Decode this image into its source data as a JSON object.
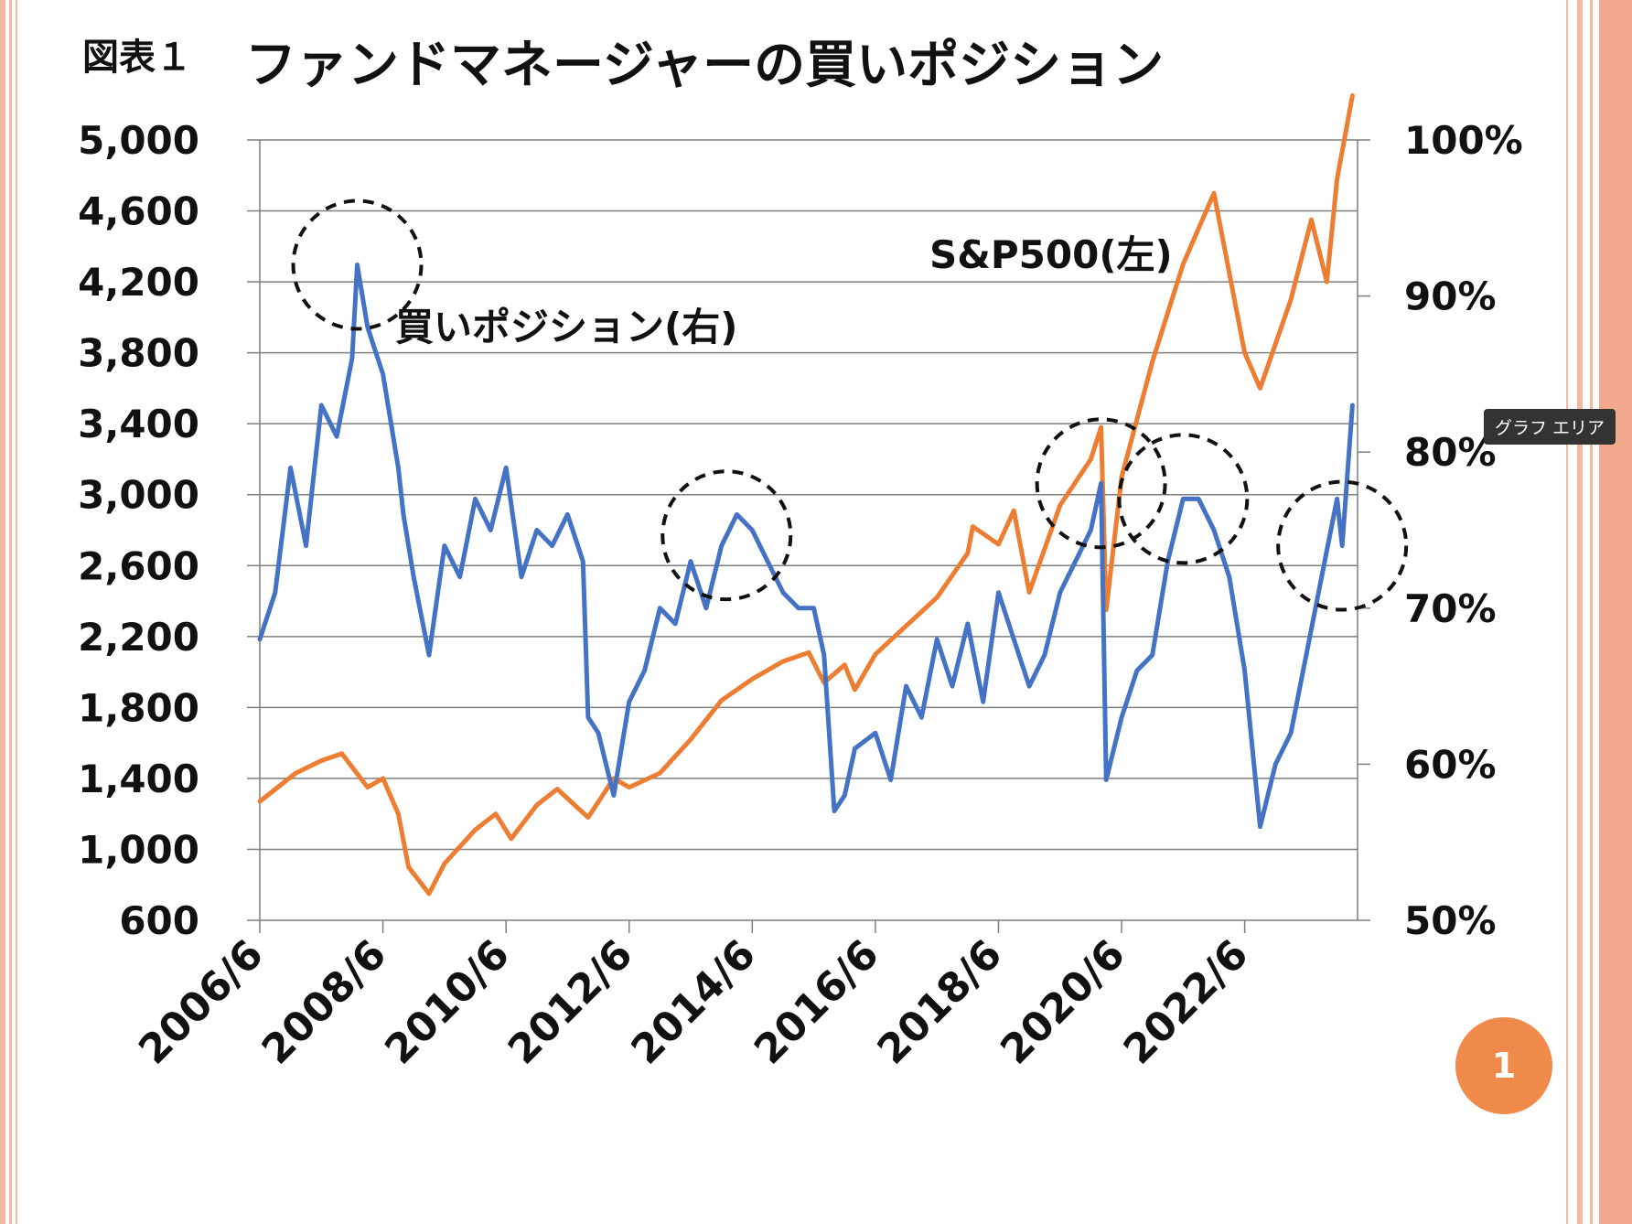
{
  "header": {
    "figure_label": "図表１",
    "title": "ファンドマネージャーの買いポジション"
  },
  "tooltip": "グラフ エリア",
  "page_number": "1",
  "colors": {
    "sp500": "#ed7d31",
    "buy_position": "#4472c4",
    "grid": "#7f7f7f",
    "accent_frame": "#f4b9a2",
    "badge": "#f08a4b"
  },
  "chart_data": {
    "type": "line",
    "title": "ファンドマネージャーの買いポジション",
    "x_ticks": [
      "2006/6",
      "2008/6",
      "2010/6",
      "2012/6",
      "2014/6",
      "2016/6",
      "2018/6",
      "2020/6",
      "2022/6"
    ],
    "y_left": {
      "ylim": [
        600,
        5000
      ],
      "ticks": [
        "5,000",
        "4,600",
        "4,200",
        "3,800",
        "3,400",
        "3,000",
        "2,600",
        "2,200",
        "1,800",
        "1,400",
        "1,000",
        "600"
      ]
    },
    "y_right": {
      "ylim": [
        50,
        100
      ],
      "ticks": [
        "100%",
        "90%",
        "80%",
        "70%",
        "60%",
        "50%"
      ]
    },
    "annotations": {
      "sp500_label": "S&P500(左)",
      "buy_label": "買いポジション(右)"
    },
    "highlighted_periods": [
      "2008/1",
      "2014/1",
      "2020/2",
      "2021/6",
      "2024/1"
    ],
    "series": [
      {
        "name": "S&P500(左)",
        "axis": "left",
        "x": [
          "2006/6",
          "2007/1",
          "2007/6",
          "2007/10",
          "2008/3",
          "2008/6",
          "2008/9",
          "2008/11",
          "2009/3",
          "2009/6",
          "2009/12",
          "2010/4",
          "2010/7",
          "2010/12",
          "2011/4",
          "2011/10",
          "2012/3",
          "2012/6",
          "2012/12",
          "2013/6",
          "2013/12",
          "2014/6",
          "2014/12",
          "2015/5",
          "2015/8",
          "2015/12",
          "2016/2",
          "2016/6",
          "2016/12",
          "2017/6",
          "2017/12",
          "2018/1",
          "2018/6",
          "2018/9",
          "2018/12",
          "2019/6",
          "2019/12",
          "2020/2",
          "2020/3",
          "2020/6",
          "2020/12",
          "2021/6",
          "2021/12",
          "2022/6",
          "2022/9",
          "2022/12",
          "2023/3",
          "2023/7",
          "2023/10",
          "2023/12",
          "2024/3"
        ],
        "values": [
          1270,
          1430,
          1500,
          1540,
          1350,
          1400,
          1200,
          900,
          750,
          920,
          1110,
          1200,
          1060,
          1250,
          1340,
          1180,
          1400,
          1350,
          1430,
          1620,
          1840,
          1960,
          2060,
          2110,
          1940,
          2040,
          1900,
          2100,
          2260,
          2420,
          2670,
          2820,
          2720,
          2910,
          2450,
          2940,
          3200,
          3380,
          2350,
          3100,
          3750,
          4300,
          4700,
          3800,
          3600,
          3850,
          4100,
          4550,
          4200,
          4780,
          5250
        ]
      },
      {
        "name": "買いポジション(右)",
        "axis": "right",
        "x": [
          "2006/6",
          "2006/9",
          "2006/12",
          "2007/3",
          "2007/6",
          "2007/9",
          "2007/12",
          "2008/1",
          "2008/3",
          "2008/6",
          "2008/9",
          "2008/10",
          "2008/12",
          "2009/3",
          "2009/6",
          "2009/9",
          "2009/12",
          "2010/3",
          "2010/6",
          "2010/9",
          "2010/12",
          "2011/3",
          "2011/6",
          "2011/9",
          "2011/10",
          "2011/12",
          "2012/3",
          "2012/6",
          "2012/9",
          "2012/12",
          "2013/3",
          "2013/6",
          "2013/9",
          "2013/12",
          "2014/3",
          "2014/6",
          "2014/9",
          "2014/12",
          "2015/3",
          "2015/6",
          "2015/8",
          "2015/10",
          "2015/12",
          "2016/2",
          "2016/6",
          "2016/9",
          "2016/12",
          "2017/3",
          "2017/6",
          "2017/9",
          "2017/12",
          "2018/3",
          "2018/6",
          "2018/9",
          "2018/12",
          "2019/3",
          "2019/6",
          "2019/9",
          "2019/12",
          "2020/2",
          "2020/3",
          "2020/6",
          "2020/9",
          "2020/12",
          "2021/3",
          "2021/6",
          "2021/9",
          "2021/12",
          "2022/3",
          "2022/6",
          "2022/9",
          "2022/12",
          "2023/3",
          "2023/6",
          "2023/9",
          "2023/12",
          "2024/1",
          "2024/3"
        ],
        "values": [
          68,
          71,
          79,
          74,
          83,
          81,
          86,
          92,
          88,
          85,
          79,
          76,
          72,
          67,
          74,
          72,
          77,
          75,
          79,
          72,
          75,
          74,
          76,
          73,
          63,
          62,
          58,
          64,
          66,
          70,
          69,
          73,
          70,
          74,
          76,
          75,
          73,
          71,
          70,
          70,
          67,
          57,
          58,
          61,
          62,
          59,
          65,
          63,
          68,
          65,
          69,
          64,
          71,
          68,
          65,
          67,
          71,
          73,
          75,
          78,
          59,
          63,
          66,
          67,
          73,
          77,
          77,
          75,
          72,
          66,
          56,
          60,
          62,
          67,
          72,
          77,
          74,
          83
        ]
      }
    ]
  }
}
